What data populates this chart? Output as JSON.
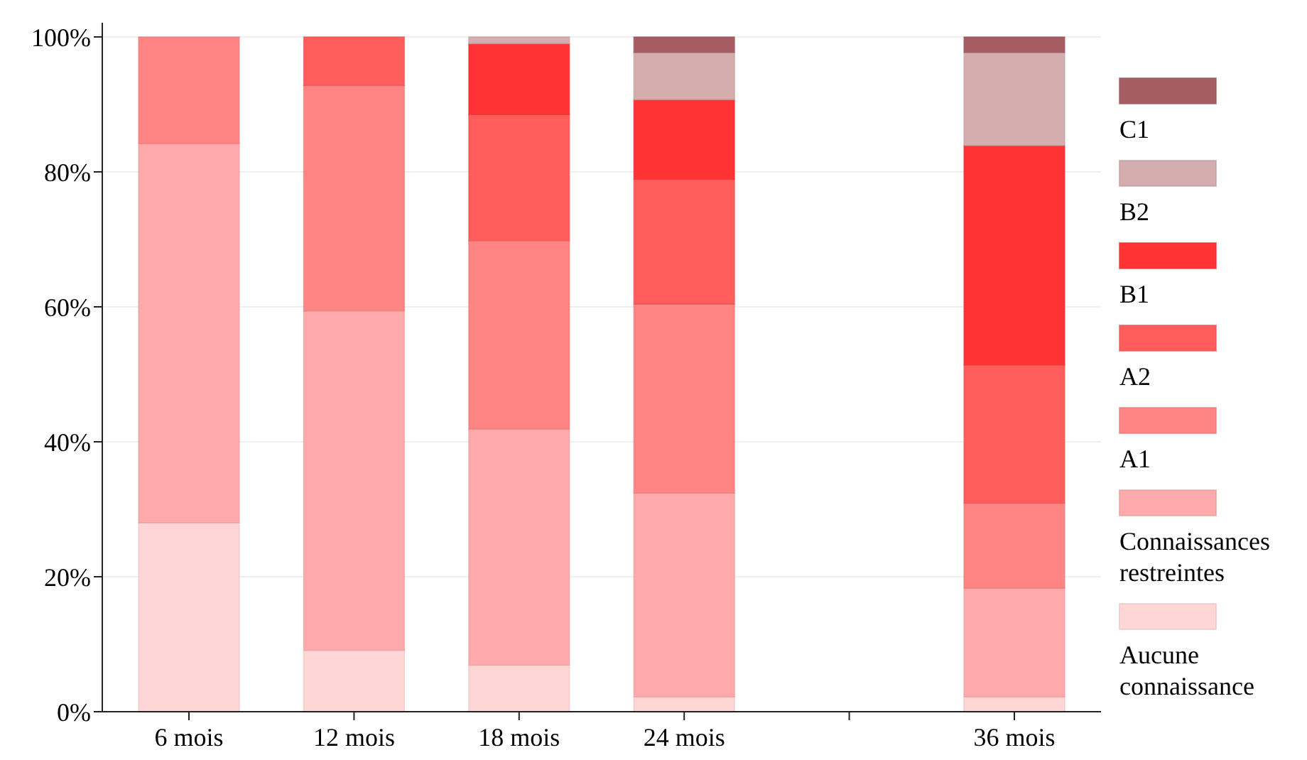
{
  "chart_data": {
    "type": "bar",
    "stacked": true,
    "categories": [
      "6 mois",
      "12 mois",
      "18 mois",
      "24 mois",
      null,
      "36 mois"
    ],
    "series": [
      {
        "name": "Aucune connaissance",
        "color": "#ffd6d6",
        "values": [
          28,
          9.1,
          6.9,
          2.2,
          null,
          2.2
        ]
      },
      {
        "name": "Connaissances restreintes",
        "color": "#ffaaaa",
        "values": [
          56.2,
          50.3,
          35,
          30.2,
          null,
          16.1
        ]
      },
      {
        "name": "A1",
        "color": "#ff8585",
        "values": [
          15.8,
          33.4,
          27.9,
          28,
          null,
          12.6
        ]
      },
      {
        "name": "A2",
        "color": "#ff5c5c",
        "values": [
          0,
          7.2,
          18.7,
          18.5,
          null,
          20.5
        ]
      },
      {
        "name": "B1",
        "color": "#ff3333",
        "values": [
          0,
          0,
          10.5,
          11.8,
          null,
          32.5
        ]
      },
      {
        "name": "B2",
        "color": "#d4adaf",
        "values": [
          0,
          0,
          1,
          7,
          null,
          13.8
        ]
      },
      {
        "name": "C1",
        "color": "#a65c63",
        "values": [
          0,
          0,
          0,
          2.3,
          null,
          2.3
        ]
      }
    ],
    "ylim": [
      0,
      100
    ],
    "yticks": [
      {
        "value": 0,
        "label": "0%"
      },
      {
        "value": 20,
        "label": "20%"
      },
      {
        "value": 40,
        "label": "40%"
      },
      {
        "value": 60,
        "label": "60%"
      },
      {
        "value": 80,
        "label": "80%"
      },
      {
        "value": 100,
        "label": "100%"
      }
    ],
    "grid": "y",
    "legend": "right"
  }
}
